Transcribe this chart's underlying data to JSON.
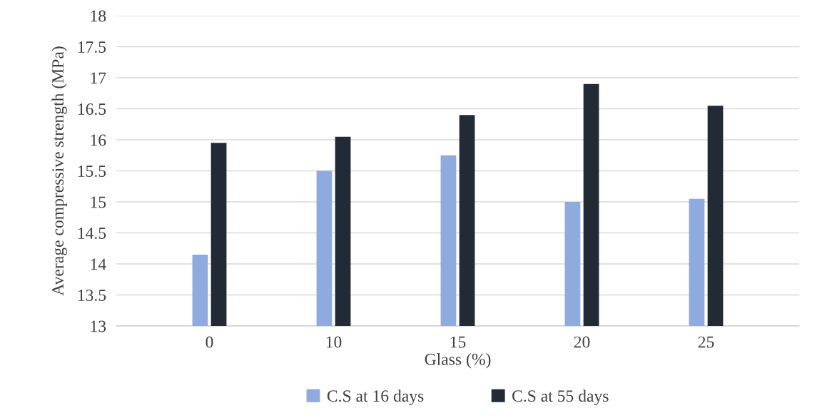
{
  "chart_data": {
    "type": "bar",
    "xlabel": "Glass (%)",
    "ylabel": "Average compressive strength (MPa)",
    "categories": [
      "0",
      "10",
      "15",
      "20",
      "25"
    ],
    "series": [
      {
        "name": "C.S at 16 days",
        "color": "#8faadc",
        "values": [
          14.15,
          15.5,
          15.75,
          15.0,
          15.05
        ]
      },
      {
        "name": "C.S at 55 days",
        "color": "#222a35",
        "values": [
          15.95,
          16.05,
          16.4,
          16.9,
          16.55
        ]
      }
    ],
    "ylim": [
      13,
      18
    ],
    "yticks": [
      13,
      13.5,
      14,
      14.5,
      15,
      15.5,
      16,
      16.5,
      17,
      17.5,
      18
    ],
    "grid": "y",
    "legend": "bottom"
  }
}
